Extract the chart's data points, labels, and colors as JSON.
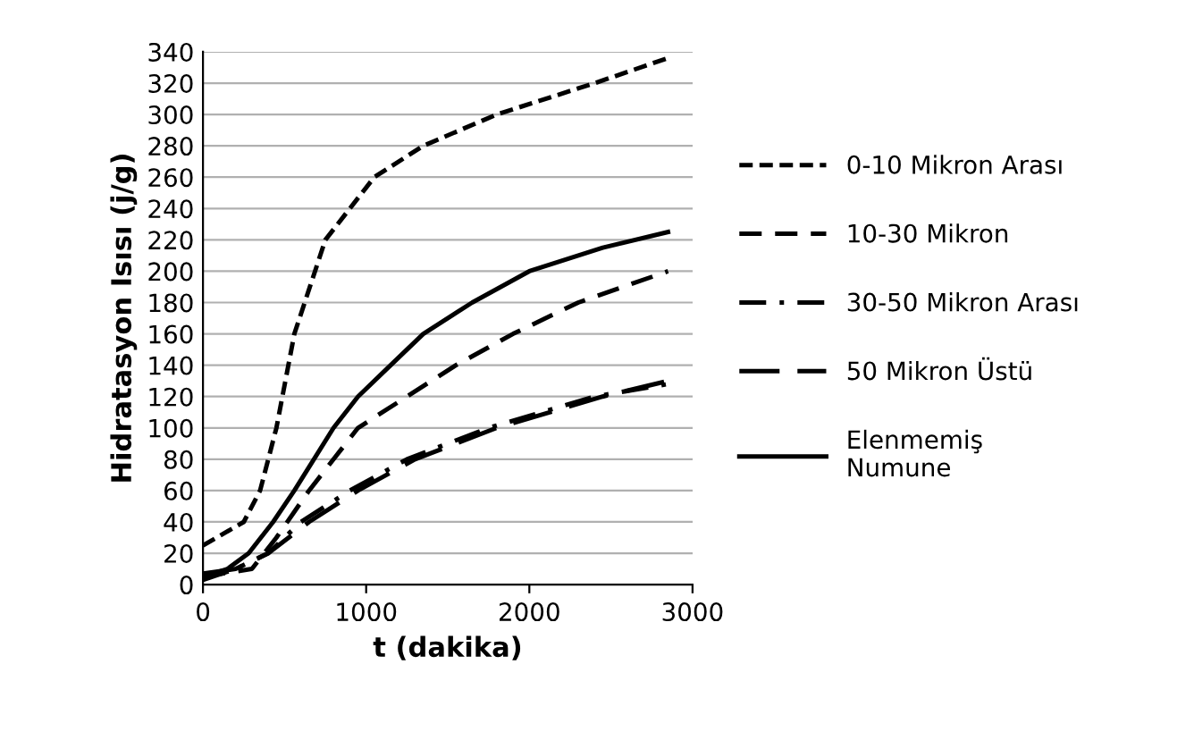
{
  "chart_data": {
    "type": "line",
    "xlabel": "t (dakika)",
    "ylabel": "Hidratasyon Isısı (j/g)",
    "xlim": [
      0,
      3000
    ],
    "xticks": [
      0,
      1000,
      2000,
      3000
    ],
    "ylim": [
      0,
      340
    ],
    "yticks": [
      0,
      20,
      40,
      60,
      80,
      100,
      120,
      140,
      160,
      180,
      200,
      220,
      240,
      260,
      280,
      300,
      320,
      340
    ],
    "grid": "y",
    "legend": "right",
    "marker": "none",
    "series": [
      {
        "name": "0-10 Mikron Arası",
        "color": "#000000",
        "line_style": "dotted",
        "x": [
          0,
          250,
          350,
          450,
          560,
          750,
          900,
          1050,
          1350,
          1800,
          2400,
          2850
        ],
        "values": [
          25,
          40,
          60,
          100,
          160,
          220,
          240,
          260,
          280,
          300,
          320,
          336
        ]
      },
      {
        "name": "10-30 Mikron",
        "color": "#000000",
        "line_style": "dashed",
        "x": [
          0,
          300,
          450,
          650,
          950,
          1250,
          1550,
          1900,
          2300,
          2850
        ],
        "values": [
          5,
          10,
          30,
          60,
          100,
          120,
          140,
          160,
          180,
          200
        ]
      },
      {
        "name": "30-50 Mikron Arası",
        "color": "#000000",
        "line_style": "dashdot",
        "x": [
          0,
          200,
          400,
          600,
          900,
          1250,
          1750,
          2400,
          2850
        ],
        "values": [
          3,
          10,
          20,
          40,
          60,
          80,
          100,
          120,
          128
        ]
      },
      {
        "name": "50 Mikron Üstü",
        "color": "#000000",
        "line_style": "longdash",
        "x": [
          0,
          200,
          400,
          650,
          950,
          1300,
          1800,
          2450,
          2850
        ],
        "values": [
          7,
          10,
          20,
          40,
          60,
          80,
          100,
          120,
          130
        ]
      },
      {
        "name": "Elenmemiş\nNumune",
        "color": "#000000",
        "line_style": "solid",
        "x": [
          0,
          150,
          280,
          430,
          560,
          800,
          950,
          1150,
          1350,
          1650,
          2000,
          2450,
          2850
        ],
        "values": [
          5,
          10,
          20,
          40,
          60,
          100,
          120,
          140,
          160,
          180,
          200,
          215,
          225
        ]
      }
    ]
  }
}
